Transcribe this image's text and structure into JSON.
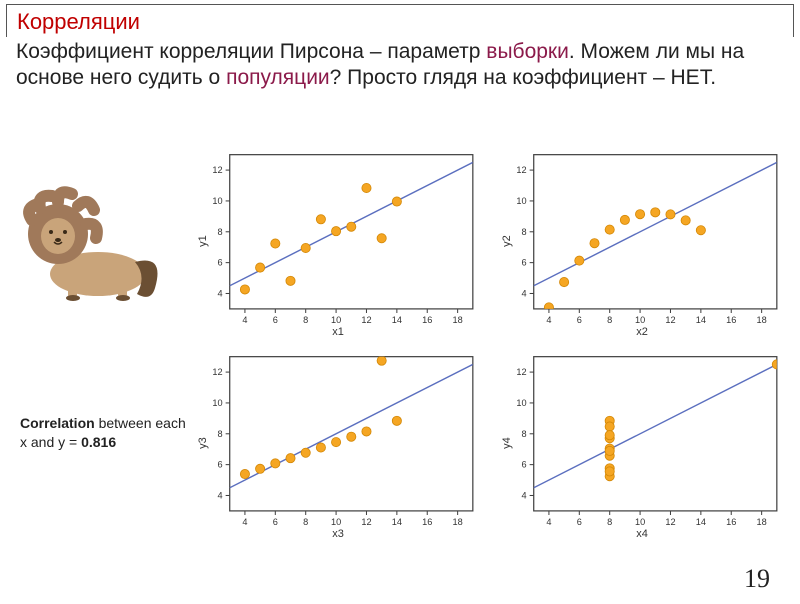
{
  "colors": {
    "title": "#c00000",
    "highlight": "#8b1a4a",
    "text": "#222222",
    "plot_border": "#404040",
    "regression_line": "#5b6fbf",
    "marker_fill": "#f5a623",
    "marker_stroke": "#d48806",
    "tick": "#333333"
  },
  "title": "Корреляции",
  "subtitle": {
    "parts": [
      {
        "t": "Коэффициент корреляции Пирсона – параметр ",
        "c": "text"
      },
      {
        "t": "выборки",
        "c": "highlight"
      },
      {
        "t": ". Можем ли мы на основе него судить о ",
        "c": "text"
      },
      {
        "t": "популяции",
        "c": "highlight"
      },
      {
        "t": "? Просто глядя на коэффициент – НЕТ.",
        "c": "text"
      }
    ]
  },
  "caption": {
    "bold": "Correlation",
    "rest": " between each x and y =  ",
    "value": "0.816"
  },
  "lion": {
    "mane": "#a0795a",
    "body": "#c9a47a",
    "dark": "#6b4f33",
    "nose": "#3a2a18"
  },
  "chart_common": {
    "x_ticks": [
      4,
      6,
      8,
      10,
      12,
      14,
      16,
      18
    ],
    "y_ticks": [
      4,
      6,
      8,
      10,
      12
    ],
    "xlim": [
      3,
      19
    ],
    "ylim": [
      3,
      13
    ],
    "line": {
      "x1": 3,
      "y1": 4.5,
      "x2": 19,
      "y2": 12.5
    },
    "marker_r": 4.5,
    "tick_fontsize": 9,
    "label_fontsize": 11
  },
  "charts": [
    {
      "xlabel": "x1",
      "ylabel": "y1",
      "points": [
        [
          10,
          8.04
        ],
        [
          8,
          6.95
        ],
        [
          13,
          7.58
        ],
        [
          9,
          8.81
        ],
        [
          11,
          8.33
        ],
        [
          14,
          9.96
        ],
        [
          6,
          7.24
        ],
        [
          4,
          4.26
        ],
        [
          12,
          10.84
        ],
        [
          7,
          4.82
        ],
        [
          5,
          5.68
        ]
      ]
    },
    {
      "xlabel": "x2",
      "ylabel": "y2",
      "points": [
        [
          10,
          9.14
        ],
        [
          8,
          8.14
        ],
        [
          13,
          8.74
        ],
        [
          9,
          8.77
        ],
        [
          11,
          9.26
        ],
        [
          14,
          8.1
        ],
        [
          6,
          6.13
        ],
        [
          4,
          3.1
        ],
        [
          12,
          9.13
        ],
        [
          7,
          7.26
        ],
        [
          5,
          4.74
        ]
      ]
    },
    {
      "xlabel": "x3",
      "ylabel": "y3",
      "points": [
        [
          10,
          7.46
        ],
        [
          8,
          6.77
        ],
        [
          13,
          12.74
        ],
        [
          9,
          7.11
        ],
        [
          11,
          7.81
        ],
        [
          14,
          8.84
        ],
        [
          6,
          6.08
        ],
        [
          4,
          5.39
        ],
        [
          12,
          8.15
        ],
        [
          7,
          6.42
        ],
        [
          5,
          5.73
        ]
      ]
    },
    {
      "xlabel": "x4",
      "ylabel": "y4",
      "points": [
        [
          8,
          6.58
        ],
        [
          8,
          5.76
        ],
        [
          8,
          7.71
        ],
        [
          8,
          8.84
        ],
        [
          8,
          8.47
        ],
        [
          8,
          7.04
        ],
        [
          8,
          5.25
        ],
        [
          19,
          12.5
        ],
        [
          8,
          5.56
        ],
        [
          8,
          7.91
        ],
        [
          8,
          6.89
        ]
      ]
    }
  ],
  "page_number": "19"
}
